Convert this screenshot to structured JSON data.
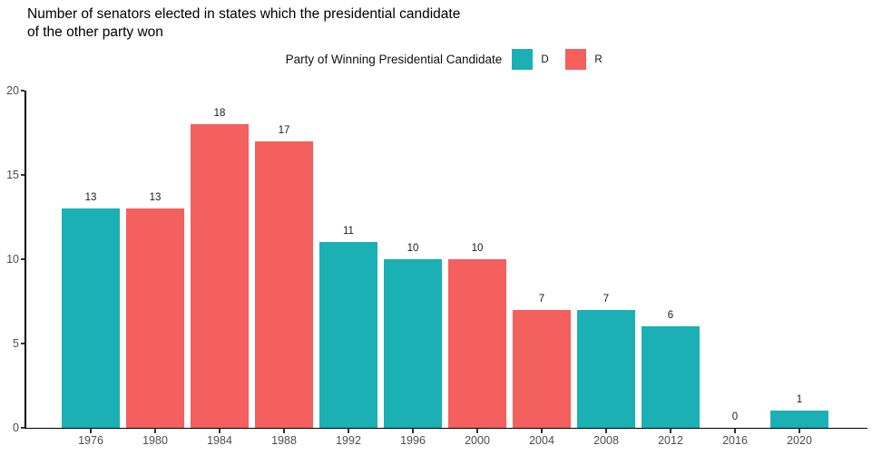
{
  "title": "Number of senators elected in states which the presidential candidate\nof the other party won",
  "legend": {
    "title": "Party of Winning Presidential Candidate",
    "items": [
      {
        "label": "D",
        "color": "#1AB0B4"
      },
      {
        "label": "R",
        "color": "#F4605D"
      }
    ]
  },
  "chart_data": {
    "type": "bar",
    "title": "Number of senators elected in states which the presidential candidate of the other party won",
    "legend_title": "Party of Winning Presidential Candidate",
    "legend_position": "top",
    "categories": [
      "1976",
      "1980",
      "1984",
      "1988",
      "1992",
      "1996",
      "2000",
      "2004",
      "2008",
      "2012",
      "2016",
      "2020"
    ],
    "values": [
      13,
      13,
      18,
      17,
      11,
      10,
      10,
      7,
      7,
      6,
      0,
      1
    ],
    "parties": [
      "D",
      "R",
      "R",
      "R",
      "D",
      "D",
      "R",
      "R",
      "D",
      "D",
      null,
      "D"
    ],
    "party_colors": {
      "D": "#1AB0B4",
      "R": "#F4605D"
    },
    "bar_labels": [
      13,
      13,
      18,
      17,
      11,
      10,
      10,
      7,
      7,
      6,
      0,
      1
    ],
    "xlabel": "",
    "ylabel": "",
    "ylim": [
      0,
      20
    ],
    "yticks": [
      0,
      5,
      10,
      15,
      20
    ],
    "grid": false,
    "axis_text_color": "#4d4d4d"
  }
}
